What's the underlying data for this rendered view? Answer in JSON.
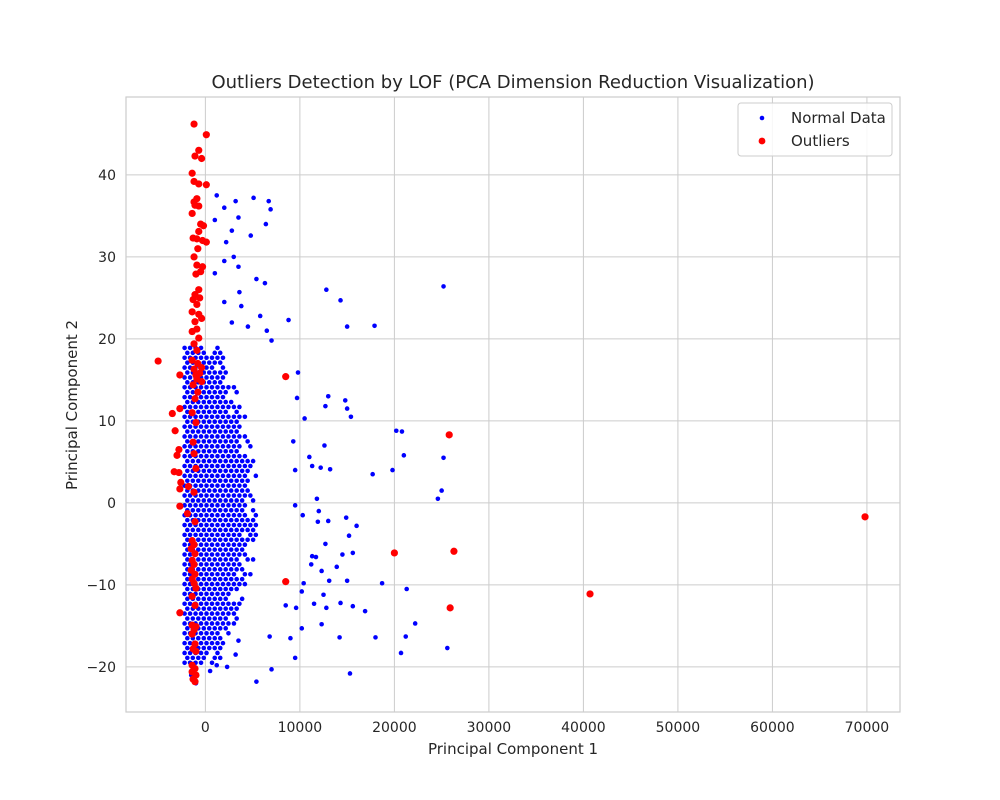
{
  "chart_data": {
    "type": "scatter",
    "title": "Outliers Detection by LOF (PCA Dimension Reduction Visualization)",
    "xlabel": "Principal Component 1",
    "ylabel": "Principal Component 2",
    "xlim": [
      -8400,
      73500
    ],
    "ylim": [
      -25.5,
      49.5
    ],
    "xticks": [
      0,
      10000,
      20000,
      30000,
      40000,
      50000,
      60000,
      70000
    ],
    "xtick_labels": [
      "0",
      "10000",
      "20000",
      "30000",
      "40000",
      "50000",
      "60000",
      "70000"
    ],
    "yticks": [
      -20,
      -10,
      0,
      10,
      20,
      30,
      40
    ],
    "ytick_labels": [
      "−20",
      "−10",
      "0",
      "10",
      "20",
      "30",
      "40"
    ],
    "grid": true,
    "legend_position": "top-right",
    "series": [
      {
        "name": "Normal Data",
        "color": "#0000ff",
        "marker": "circle-small",
        "points": [
          [
            -1500,
            -21
          ],
          [
            -1000,
            -22
          ],
          [
            500,
            -20.5
          ],
          [
            1200,
            -19.8
          ],
          [
            2300,
            -20
          ],
          [
            3200,
            -18.5
          ],
          [
            5400,
            -21.8
          ],
          [
            7000,
            -20.3
          ],
          [
            9500,
            -18.9
          ],
          [
            15300,
            -20.8
          ],
          [
            20700,
            -18.3
          ],
          [
            25600,
            -17.7
          ],
          [
            6800,
            -16.3
          ],
          [
            9000,
            -16.5
          ],
          [
            14200,
            -16.4
          ],
          [
            18000,
            -16.4
          ],
          [
            21200,
            -16.3
          ],
          [
            22200,
            -14.7
          ],
          [
            10200,
            -15.3
          ],
          [
            12300,
            -14.8
          ],
          [
            3500,
            -16.8
          ],
          [
            8500,
            -12.5
          ],
          [
            9600,
            -12.8
          ],
          [
            11500,
            -12.3
          ],
          [
            12800,
            -12.8
          ],
          [
            15600,
            -12.6
          ],
          [
            16900,
            -13.2
          ],
          [
            10200,
            -10.8
          ],
          [
            12500,
            -11.2
          ],
          [
            14300,
            -12.2
          ],
          [
            10400,
            -9.8
          ],
          [
            13100,
            -9.5
          ],
          [
            15000,
            -9.5
          ],
          [
            18700,
            -9.8
          ],
          [
            21300,
            -10.5
          ],
          [
            11200,
            -7.5
          ],
          [
            12300,
            -8.3
          ],
          [
            13900,
            -7.8
          ],
          [
            11300,
            -6.5
          ],
          [
            11700,
            -6.6
          ],
          [
            14500,
            -6.3
          ],
          [
            15600,
            -6.1
          ],
          [
            12700,
            -5
          ],
          [
            15200,
            -4
          ],
          [
            13000,
            -2.2
          ],
          [
            14900,
            -1.8
          ],
          [
            16000,
            -2.8
          ],
          [
            9500,
            -0.3
          ],
          [
            12000,
            -1
          ],
          [
            11900,
            -2.3
          ],
          [
            10300,
            -1.5
          ],
          [
            11800,
            0.5
          ],
          [
            17700,
            3.5
          ],
          [
            19800,
            4
          ],
          [
            24600,
            0.5
          ],
          [
            25000,
            1.5
          ],
          [
            25200,
            5.5
          ],
          [
            20200,
            8.8
          ],
          [
            20800,
            8.7
          ],
          [
            21000,
            5.8
          ],
          [
            12600,
            7
          ],
          [
            11000,
            5.6
          ],
          [
            11300,
            4.5
          ],
          [
            12200,
            4.3
          ],
          [
            13200,
            4.1
          ],
          [
            9300,
            7.5
          ],
          [
            9500,
            4
          ],
          [
            10500,
            10.3
          ],
          [
            12700,
            11.8
          ],
          [
            13000,
            13
          ],
          [
            14800,
            12.5
          ],
          [
            15000,
            11.5
          ],
          [
            15400,
            10.5
          ],
          [
            9800,
            15.9
          ],
          [
            9700,
            12.8
          ],
          [
            8800,
            22.3
          ],
          [
            12800,
            26
          ],
          [
            14300,
            24.7
          ],
          [
            15000,
            21.5
          ],
          [
            17900,
            21.6
          ],
          [
            25200,
            26.4
          ],
          [
            1200,
            37.5
          ],
          [
            2000,
            36
          ],
          [
            3200,
            36.8
          ],
          [
            3500,
            34.8
          ],
          [
            5100,
            37.2
          ],
          [
            6700,
            36.8
          ],
          [
            6900,
            35.8
          ],
          [
            6400,
            34
          ],
          [
            1000,
            34.5
          ],
          [
            4800,
            32.6
          ],
          [
            2800,
            33.2
          ],
          [
            2200,
            31.8
          ],
          [
            3000,
            30
          ],
          [
            2000,
            29.5
          ],
          [
            3500,
            28.8
          ],
          [
            5400,
            27.3
          ],
          [
            1000,
            28
          ],
          [
            6300,
            26.8
          ],
          [
            3600,
            25.7
          ],
          [
            2000,
            24.5
          ],
          [
            3800,
            24
          ],
          [
            5800,
            22.8
          ],
          [
            4500,
            21.5
          ],
          [
            6500,
            21
          ],
          [
            7000,
            19.8
          ],
          [
            2800,
            22
          ]
        ],
        "band": {
          "x_left": -2200,
          "x_right_at_ymid": 5600,
          "y_range": [
            -19.5,
            19.0
          ],
          "row_step": 0.6,
          "col_step": 580
        }
      },
      {
        "name": "Outliers",
        "color": "#ff0000",
        "marker": "circle",
        "points": [
          [
            -1200,
            46.2
          ],
          [
            100,
            44.9
          ],
          [
            -1100,
            42.3
          ],
          [
            -700,
            43
          ],
          [
            -400,
            42
          ],
          [
            -1400,
            40.2
          ],
          [
            -1200,
            39.2
          ],
          [
            -700,
            38.9
          ],
          [
            100,
            38.8
          ],
          [
            -900,
            37.1
          ],
          [
            -1200,
            36.7
          ],
          [
            -1400,
            35.3
          ],
          [
            -700,
            36.2
          ],
          [
            -1100,
            36.3
          ],
          [
            -500,
            34
          ],
          [
            -200,
            33.8
          ],
          [
            -700,
            33.1
          ],
          [
            -1300,
            32.3
          ],
          [
            -900,
            32.2
          ],
          [
            -300,
            32
          ],
          [
            100,
            31.8
          ],
          [
            -800,
            31
          ],
          [
            -1200,
            30
          ],
          [
            -900,
            29
          ],
          [
            -300,
            28.8
          ],
          [
            -500,
            28.2
          ],
          [
            -1000,
            27.9
          ],
          [
            -700,
            26
          ],
          [
            -1100,
            25.4
          ],
          [
            -600,
            25
          ],
          [
            -1300,
            24.8
          ],
          [
            -900,
            24.2
          ],
          [
            -1400,
            23.3
          ],
          [
            -700,
            23
          ],
          [
            -400,
            22.5
          ],
          [
            -1100,
            22.1
          ],
          [
            -900,
            21.2
          ],
          [
            -1400,
            20.9
          ],
          [
            -700,
            20.1
          ],
          [
            -1200,
            19.4
          ],
          [
            -900,
            18.6
          ],
          [
            -5000,
            17.3
          ],
          [
            -1400,
            17.4
          ],
          [
            -800,
            17
          ],
          [
            -400,
            16.5
          ],
          [
            -1200,
            16.3
          ],
          [
            -600,
            15.8
          ],
          [
            -1000,
            15.6
          ],
          [
            -2700,
            15.6
          ],
          [
            -900,
            15.1
          ],
          [
            -400,
            14.8
          ],
          [
            -1300,
            14.4
          ],
          [
            -800,
            13.5
          ],
          [
            -1100,
            12.7
          ],
          [
            -3500,
            10.9
          ],
          [
            -2700,
            11.5
          ],
          [
            -1400,
            11
          ],
          [
            -1000,
            9.8
          ],
          [
            -3200,
            8.8
          ],
          [
            -1300,
            7.4
          ],
          [
            -2800,
            6.5
          ],
          [
            -1200,
            6
          ],
          [
            -3000,
            5.8
          ],
          [
            -1000,
            4.2
          ],
          [
            -3300,
            3.8
          ],
          [
            -2800,
            3.7
          ],
          [
            -2600,
            2.5
          ],
          [
            -1800,
            2
          ],
          [
            -2700,
            1.7
          ],
          [
            -1200,
            1.3
          ],
          [
            -2700,
            -0.4
          ],
          [
            -1900,
            -1.3
          ],
          [
            -1100,
            -2.3
          ],
          [
            -1400,
            -4.6
          ],
          [
            -1200,
            -5.1
          ],
          [
            -1500,
            -5.6
          ],
          [
            -1100,
            -6.2
          ],
          [
            -1400,
            -7
          ],
          [
            -1200,
            -7.5
          ],
          [
            -1500,
            -8.2
          ],
          [
            -1100,
            -8.7
          ],
          [
            -1400,
            -9.3
          ],
          [
            -1200,
            -9.8
          ],
          [
            -1000,
            -10.4
          ],
          [
            -1400,
            -11.4
          ],
          [
            -1100,
            -12.5
          ],
          [
            -2700,
            -13.4
          ],
          [
            -1400,
            -14.9
          ],
          [
            -1000,
            -15.1
          ],
          [
            -1200,
            -15.5
          ],
          [
            -1400,
            -16
          ],
          [
            -1100,
            -17.2
          ],
          [
            -1300,
            -17.8
          ],
          [
            -1000,
            -18.1
          ],
          [
            -1400,
            -19.8
          ],
          [
            -1100,
            -20.2
          ],
          [
            -1400,
            -20.6
          ],
          [
            -1000,
            -21
          ],
          [
            -1300,
            -21.5
          ],
          [
            -1100,
            -21.8
          ],
          [
            8500,
            15.4
          ],
          [
            25800,
            8.3
          ],
          [
            8500,
            -9.6
          ],
          [
            20000,
            -6.1
          ],
          [
            26300,
            -5.9
          ],
          [
            25900,
            -12.8
          ],
          [
            40700,
            -11.1
          ],
          [
            69800,
            -1.7
          ]
        ]
      }
    ]
  }
}
